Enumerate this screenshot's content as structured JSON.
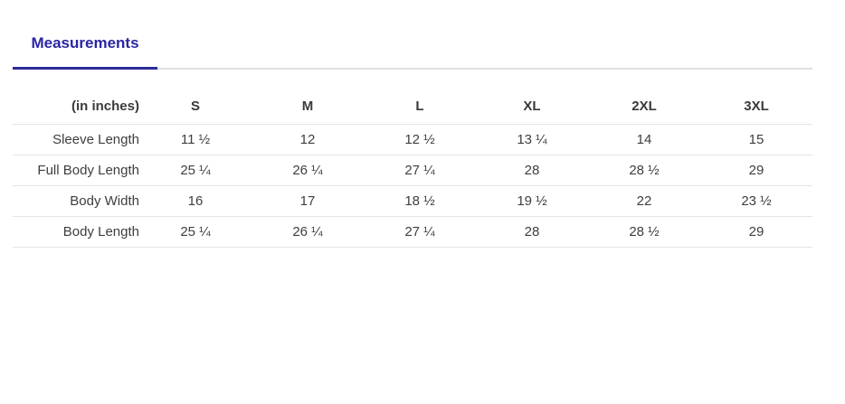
{
  "colors": {
    "accent": "#2b26a3",
    "tab_indicator": "#2d2c97",
    "tab_divider": "#dfdfe6",
    "row_divider": "#e4e4e4",
    "text": "#3e3e3e",
    "background": "#ffffff"
  },
  "tabs": {
    "items": [
      {
        "label": "Measurements",
        "active": true
      }
    ]
  },
  "table": {
    "unit_header": "(in inches)",
    "columns": [
      "S",
      "M",
      "L",
      "XL",
      "2XL",
      "3XL"
    ],
    "rows": [
      {
        "label": "Sleeve Length",
        "values": [
          "11 ½",
          "12",
          "12 ½",
          "13 ¼",
          "14",
          "15"
        ]
      },
      {
        "label": "Full Body Length",
        "values": [
          "25 ¼",
          "26 ¼",
          "27 ¼",
          "28",
          "28 ½",
          "29"
        ]
      },
      {
        "label": "Body Width",
        "values": [
          "16",
          "17",
          "18 ½",
          "19 ½",
          "22",
          "23 ½"
        ]
      },
      {
        "label": "Body Length",
        "values": [
          "25 ¼",
          "26 ¼",
          "27 ¼",
          "28",
          "28 ½",
          "29"
        ]
      }
    ]
  }
}
